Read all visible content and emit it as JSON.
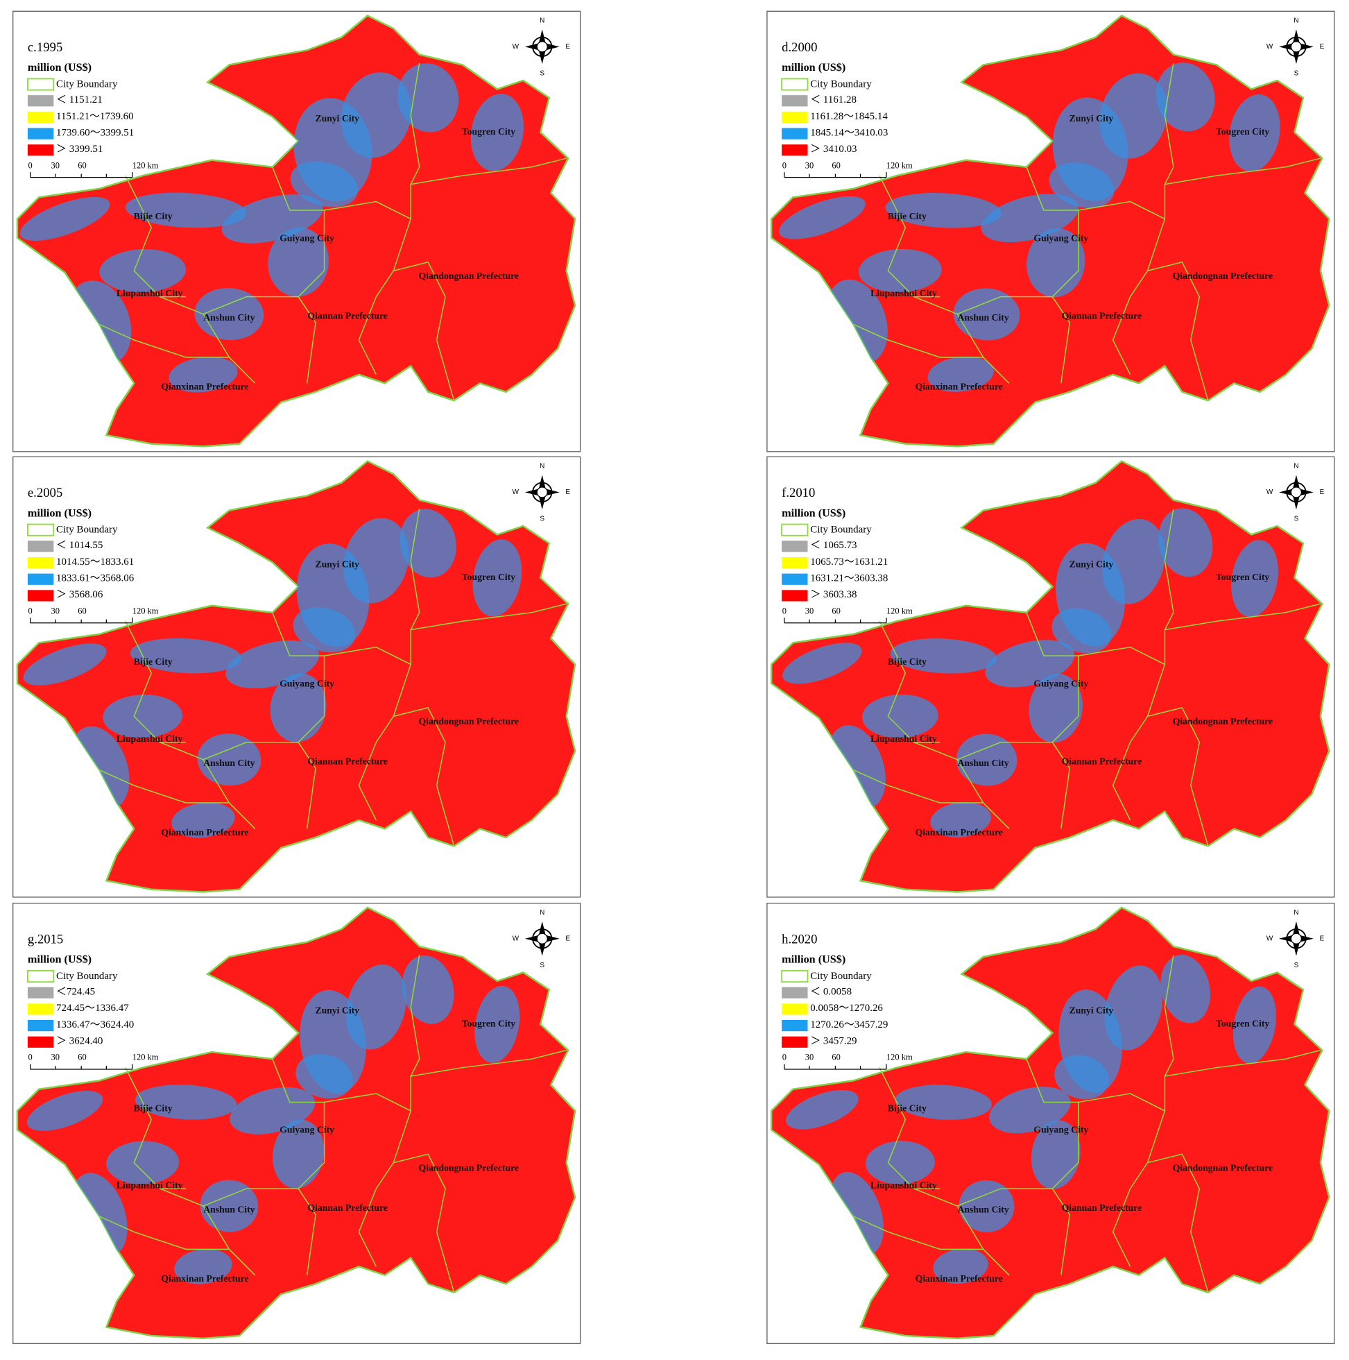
{
  "panels": [
    {
      "title": "c.1995",
      "legend": [
        "＜ 1151.21",
        "1151.21～1739.60",
        "1739.60～3399.51",
        "＞ 3399.51"
      ]
    },
    {
      "title": "d.2000",
      "legend": [
        "＜ 1161.28",
        "1161.28～1845.14",
        "1845.14～3410.03",
        "＞ 3410.03"
      ]
    },
    {
      "title": "e.2005",
      "legend": [
        "＜ 1014.55",
        "1014.55～1833.61",
        "1833.61～3568.06",
        "＞ 3568.06"
      ]
    },
    {
      "title": "f.2010",
      "legend": [
        "＜ 1065.73",
        "1065.73～1631.21",
        "1631.21～3603.38",
        "＞ 3603.38"
      ]
    },
    {
      "title": "g.2015",
      "legend": [
        "＜724.45",
        "724.45～1336.47",
        "1336.47～3624.40",
        "＞ 3624.40"
      ]
    },
    {
      "title": "h.2020",
      "legend": [
        "＜ 0.0058",
        "0.0058～1270.26",
        "1270.26～3457.29",
        "＞ 3457.29"
      ]
    }
  ],
  "unit": "million (US$)",
  "boundary": "City Boundary",
  "legend_colors": [
    "#a8a8a8",
    "#ffff00",
    "#1c9ff0",
    "#ff0000"
  ],
  "scale": [
    "0",
    "30",
    "60",
    "120 km"
  ],
  "compass": [
    "N",
    "E",
    "S",
    "W"
  ],
  "cities": [
    "Zunyi City",
    "Tougren City",
    "Bijie City",
    "Guiyang City",
    "Qiandongnan Prefecture",
    "Liupanshui City",
    "Anshun City",
    "Qiannan Prefecture",
    "Qianxinan Prefecture"
  ]
}
